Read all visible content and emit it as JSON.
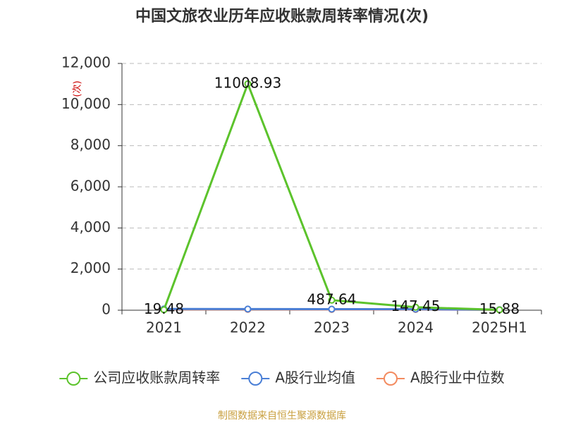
{
  "chart_data": {
    "type": "line",
    "title": "中国文旅农业历年应收账款周转率情况(次)",
    "y_label": "(次)",
    "source": "制图数据来自恒生聚源数据库",
    "categories": [
      "2021",
      "2022",
      "2023",
      "2024",
      "2025H1"
    ],
    "series": [
      {
        "name": "公司应收账款周转率",
        "color": "#5cc32c",
        "values": [
          19.48,
          11008.93,
          487.64,
          147.45,
          15.88
        ],
        "show_labels": true
      },
      {
        "name": "A股行业均值",
        "color": "#4a7fd6",
        "values": [
          60,
          55,
          50,
          48,
          25
        ],
        "show_labels": false
      },
      {
        "name": "A股行业中位数",
        "color": "#f38b60",
        "values": [
          40,
          38,
          36,
          35,
          18
        ],
        "show_labels": false
      }
    ],
    "ylim": [
      0,
      12000
    ],
    "yticks": [
      0,
      {
        "value": 2000,
        "label": "2,000"
      },
      {
        "value": 4000,
        "label": "4,000"
      },
      {
        "value": 6000,
        "label": "6,000"
      },
      {
        "value": 8000,
        "label": "8,000"
      },
      {
        "value": 10000,
        "label": "10,000"
      },
      {
        "value": 12000,
        "label": "12,000"
      }
    ],
    "grid": true
  }
}
